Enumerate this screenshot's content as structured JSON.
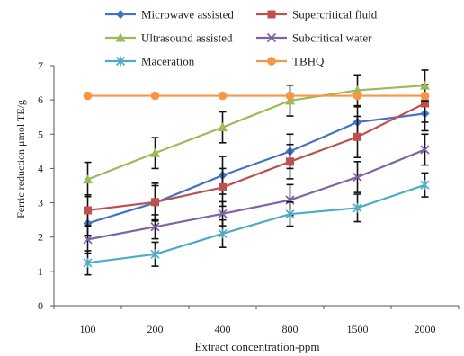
{
  "chart_data": {
    "type": "line",
    "xlabel": "Extract concentration-ppm",
    "ylabel": "Ferric reduction μmol TE/g",
    "categories": [
      "100",
      "200",
      "400",
      "800",
      "1500",
      "2000"
    ],
    "ylim": [
      0,
      7
    ],
    "yticks": [
      "0",
      "1",
      "2",
      "3",
      "4",
      "5",
      "6",
      "7"
    ],
    "grid": false,
    "legend_position": "top",
    "series": [
      {
        "name": "Microwave assisted",
        "color": "#4472c4",
        "marker": "diamond",
        "values": [
          2.4,
          3.0,
          3.8,
          4.5,
          5.35,
          5.6
        ],
        "errors": [
          0.35,
          0.5,
          0.55,
          0.5,
          0.45,
          0.5
        ]
      },
      {
        "name": "Supercritical fluid",
        "color": "#c0504d",
        "marker": "square",
        "values": [
          2.78,
          3.02,
          3.45,
          4.2,
          4.92,
          5.9
        ],
        "errors": [
          0.45,
          0.55,
          0.55,
          0.5,
          0.6,
          0.55
        ]
      },
      {
        "name": "Ultrasound assisted",
        "color": "#9bbb59",
        "marker": "triangle",
        "values": [
          3.68,
          4.45,
          5.2,
          5.98,
          6.28,
          6.42
        ],
        "errors": [
          0.5,
          0.45,
          0.45,
          0.45,
          0.45,
          0.45
        ]
      },
      {
        "name": "Subcritical water",
        "color": "#8064a2",
        "marker": "x",
        "values": [
          1.93,
          2.3,
          2.68,
          3.08,
          3.75,
          4.55
        ],
        "errors": [
          0.4,
          0.35,
          0.35,
          0.45,
          0.45,
          0.45
        ]
      },
      {
        "name": "Maceration",
        "color": "#4bacc6",
        "marker": "star",
        "values": [
          1.25,
          1.5,
          2.1,
          2.67,
          2.85,
          3.52
        ],
        "errors": [
          0.35,
          0.35,
          0.4,
          0.35,
          0.4,
          0.35
        ]
      },
      {
        "name": "TBHQ",
        "color": "#f79646",
        "marker": "circle",
        "values": [
          6.12,
          6.12,
          6.12,
          6.12,
          6.12,
          6.12
        ],
        "errors": [
          0,
          0,
          0,
          0,
          0,
          0
        ]
      }
    ]
  }
}
